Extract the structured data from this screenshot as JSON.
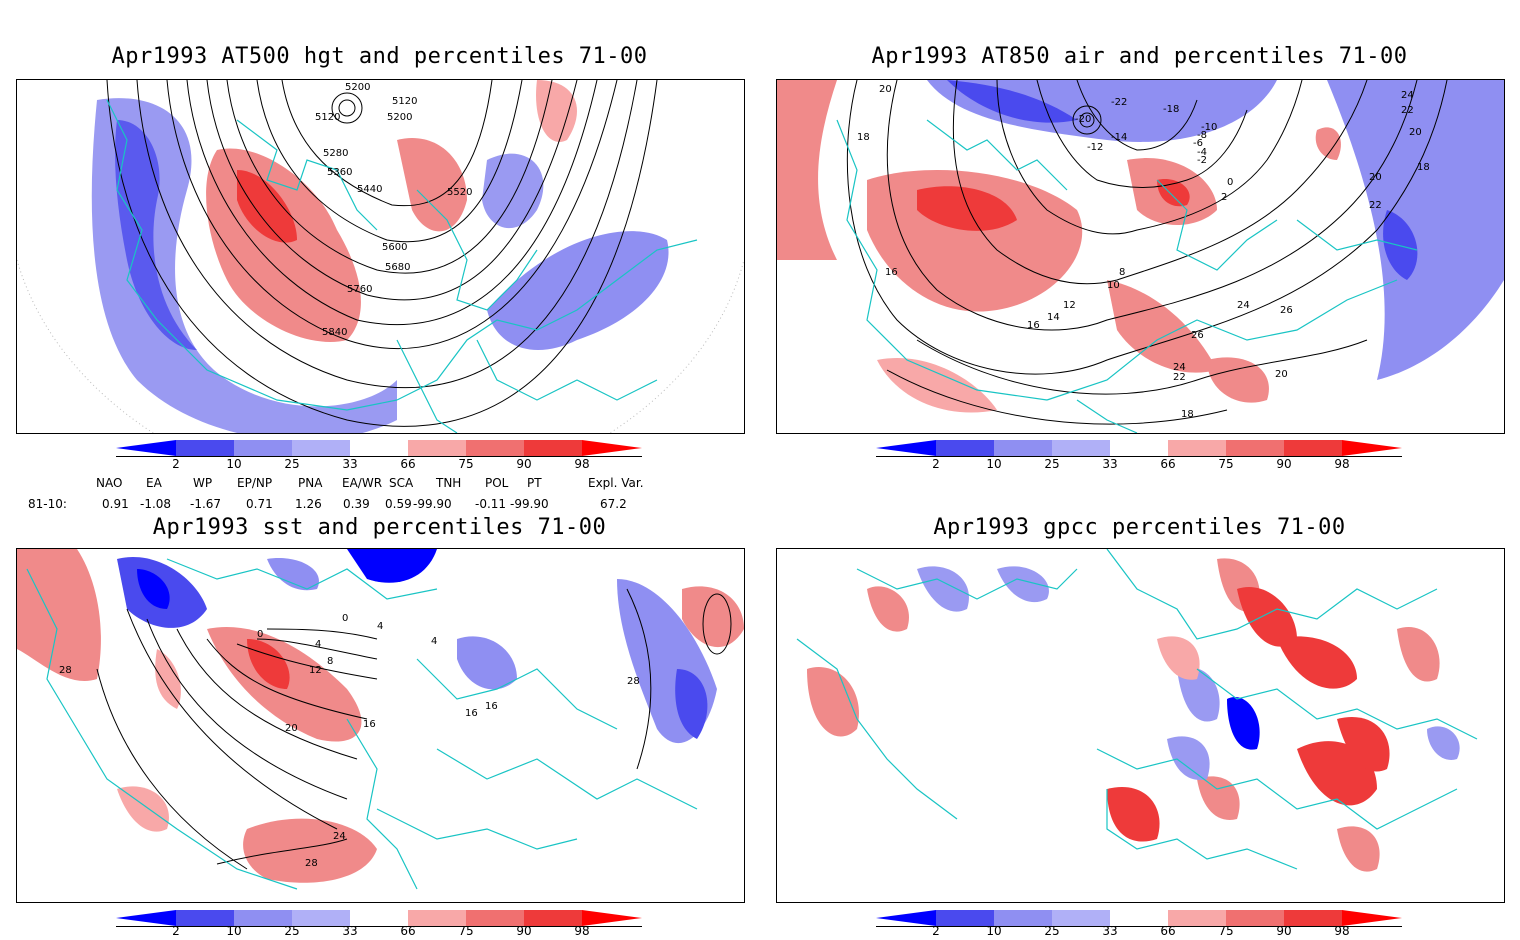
{
  "panels": [
    {
      "id": "p1",
      "title": "Apr1993 AT500 hgt and percentiles 71-00",
      "contour_labels": [
        "5200",
        "5120",
        "5120",
        "5200",
        "5280",
        "5360",
        "5440",
        "5520",
        "5600",
        "5680",
        "5760",
        "5840"
      ]
    },
    {
      "id": "p2",
      "title": "Apr1993 AT850 air and percentiles 71-00",
      "contour_labels": [
        "20",
        "18",
        "-20",
        "-22",
        "-18",
        "-14",
        "-12",
        "-10",
        "-8",
        "-6",
        "-4",
        "-2",
        "0",
        "2",
        "24",
        "22",
        "20",
        "18",
        "20",
        "22",
        "16",
        "8",
        "10",
        "12",
        "14",
        "16",
        "24",
        "26",
        "26",
        "24",
        "22",
        "20",
        "18"
      ]
    },
    {
      "id": "p3",
      "title": "Apr1993 sst and percentiles 71-00",
      "contour_labels": [
        "28",
        "0",
        "4",
        "0",
        "4",
        "8",
        "12",
        "16",
        "20",
        "16",
        "16",
        "4",
        "24",
        "28",
        "28"
      ]
    },
    {
      "id": "p4",
      "title": "Apr1993 gpcc percentiles 71-00",
      "contour_labels": []
    }
  ],
  "colorbar": {
    "labels": [
      "2",
      "10",
      "25",
      "33",
      "66",
      "75",
      "90",
      "98"
    ],
    "colors": {
      "blue_dark": "#0000ff",
      "blue_mid": "#4a4aee",
      "blue_light": "#8f8ff2",
      "blue_pale": "#b0b0f7",
      "red_pale": "#f8a8a8",
      "red_light": "#f07070",
      "red_mid": "#ee3a3a",
      "red_dark": "#ff0000"
    }
  },
  "indices": {
    "header": [
      "NAO",
      "EA",
      "WP",
      "EP/NP",
      "PNA",
      "EA/WR",
      "SCA",
      "TNH",
      "POL",
      "PT",
      "Expl. Var."
    ],
    "row_label": "81-10:",
    "values": [
      "0.91",
      "-1.08",
      "-1.67",
      "0.71",
      "1.26",
      "0.39",
      "0.59",
      "-99.90",
      "-0.11",
      "-99.90",
      "67.2"
    ]
  },
  "map_colors": {
    "coast": "#19c4c4",
    "contour": "#000000",
    "grid": "#aaaaaa"
  }
}
